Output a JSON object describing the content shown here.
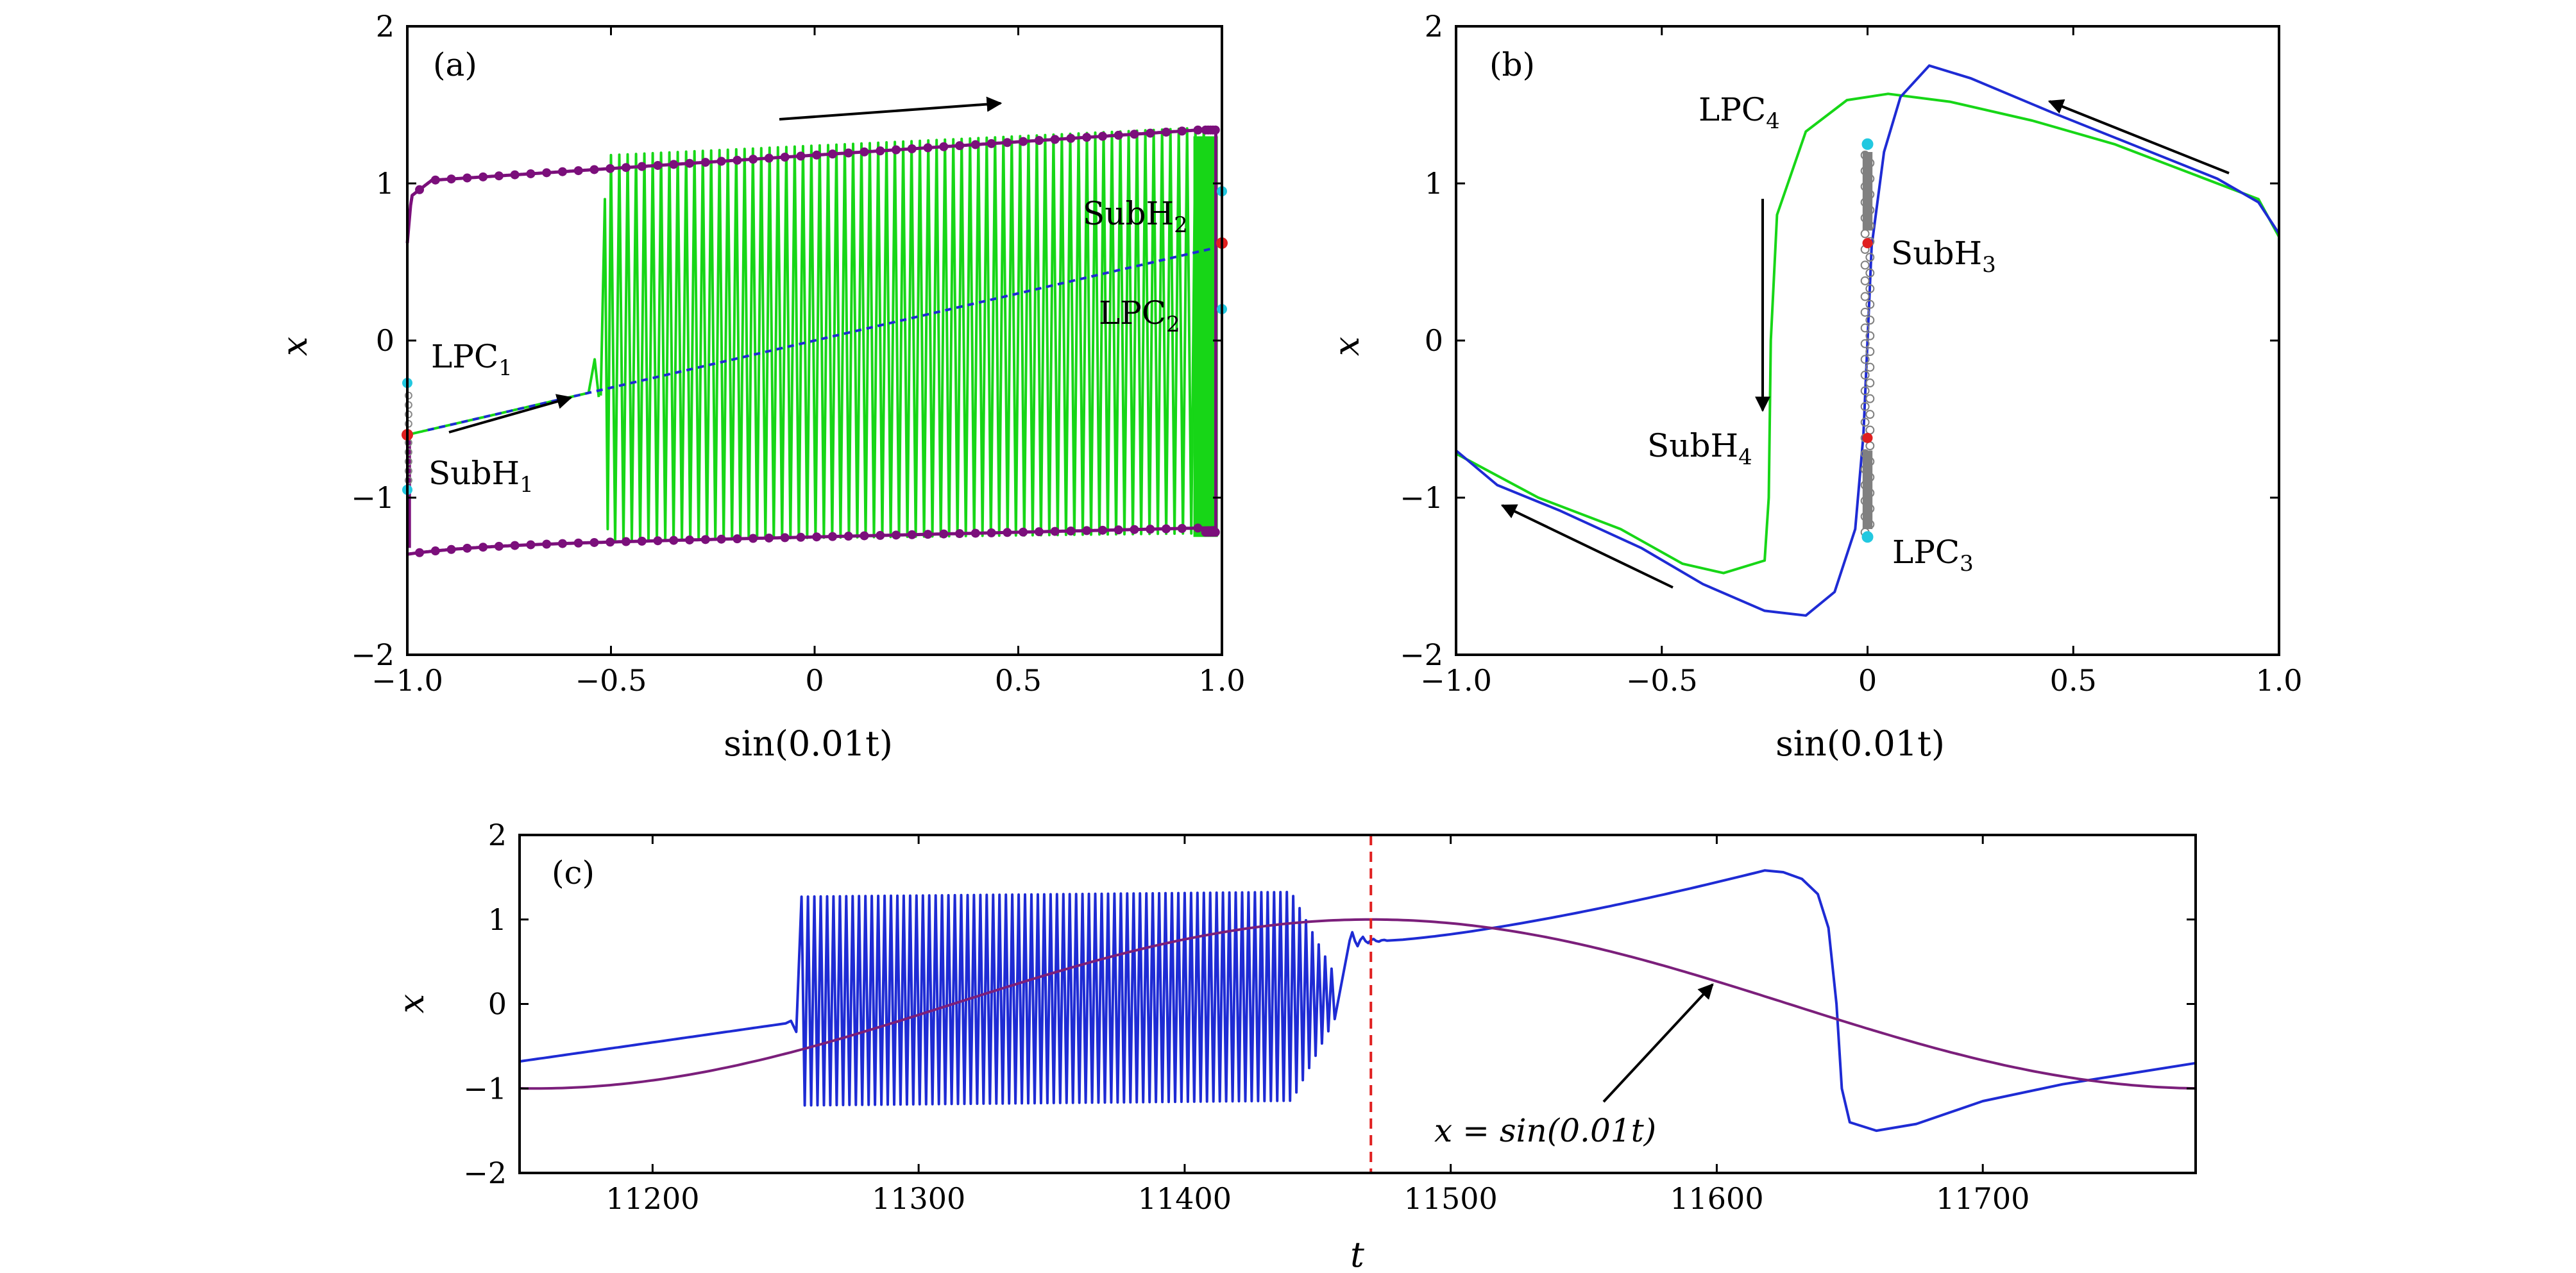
{
  "chart_data": [
    {
      "id": "a",
      "type": "line",
      "panel_label": "(a)",
      "xlabel": "sin(0.01t)",
      "ylabel": "x",
      "xlim": [
        -1.0,
        1.0
      ],
      "ylim": [
        -2,
        2
      ],
      "xticks": [
        "−1.0",
        "−0.5",
        "0",
        "0.5",
        "1.0"
      ],
      "yticks": [
        "2",
        "1",
        "0",
        "−1",
        "−2"
      ],
      "colors": {
        "stable_branch": "#17d617",
        "unstable_branch": "#1e2bd4",
        "orbit_extrema": "#7b0f7b",
        "lpc_points": "#22c8e0",
        "subh_points": "#e02020"
      },
      "annotations": [
        {
          "label": "LPC",
          "subscript": "1"
        },
        {
          "label": "SubH",
          "subscript": "1"
        },
        {
          "label": "SubH",
          "subscript": "2"
        },
        {
          "label": "LPC",
          "subscript": "2"
        }
      ],
      "orbit_envelope": {
        "x": [
          -1.0,
          -0.9,
          -0.7,
          -0.5,
          -0.25,
          0,
          0.25,
          0.5,
          0.75,
          0.97
        ],
        "upper": [
          0.62,
          0.95,
          1.05,
          1.1,
          1.15,
          1.2,
          1.25,
          1.3,
          1.33,
          1.35
        ],
        "lower": [
          -1.3,
          -1.36,
          -1.36,
          -1.34,
          -1.32,
          -1.31,
          -1.29,
          -1.27,
          -1.24,
          -1.2
        ]
      },
      "equilibrium_branch": {
        "x": [
          -1.0,
          -0.5,
          0,
          0.5,
          1.0
        ],
        "y": [
          -0.6,
          -0.27,
          -0.05,
          0.3,
          0.62
        ]
      }
    },
    {
      "id": "b",
      "type": "line",
      "panel_label": "(b)",
      "xlabel": "sin(0.01t)",
      "ylabel": "x",
      "xlim": [
        -1.0,
        1.0
      ],
      "ylim": [
        -2,
        2
      ],
      "xticks": [
        "−1.0",
        "−0.5",
        "0",
        "0.5",
        "1.0"
      ],
      "yticks": [
        "2",
        "1",
        "0",
        "−1",
        "−2"
      ],
      "colors": {
        "green_trajectory": "#17d617",
        "blue_trajectory": "#1e2bd4",
        "branch": "#808080",
        "lpc_points": "#22c8e0",
        "subh_points": "#e02020"
      },
      "annotations": [
        {
          "label": "LPC",
          "subscript": "4"
        },
        {
          "label": "SubH",
          "subscript": "3"
        },
        {
          "label": "SubH",
          "subscript": "4"
        },
        {
          "label": "LPC",
          "subscript": "3"
        }
      ]
    },
    {
      "id": "c",
      "type": "line",
      "panel_label": "(c)",
      "xlabel": "t",
      "ylabel": "x",
      "xlim": [
        11150,
        11780
      ],
      "ylim": [
        -2,
        2
      ],
      "xticks": [
        "11200",
        "11300",
        "11400",
        "11500",
        "11600",
        "11700"
      ],
      "yticks": [
        "2",
        "1",
        "0",
        "−1",
        "−2"
      ],
      "colors": {
        "response": "#1e2bd4",
        "forcing": "#7b1f7b",
        "marker": "#e02020"
      },
      "vertical_marker_t": 11470,
      "annotations": [
        {
          "label": "x = sin(0.01t)"
        }
      ],
      "series": [
        {
          "values": "x(t)"
        },
        {
          "values": "sin(0.01t)"
        }
      ]
    }
  ]
}
